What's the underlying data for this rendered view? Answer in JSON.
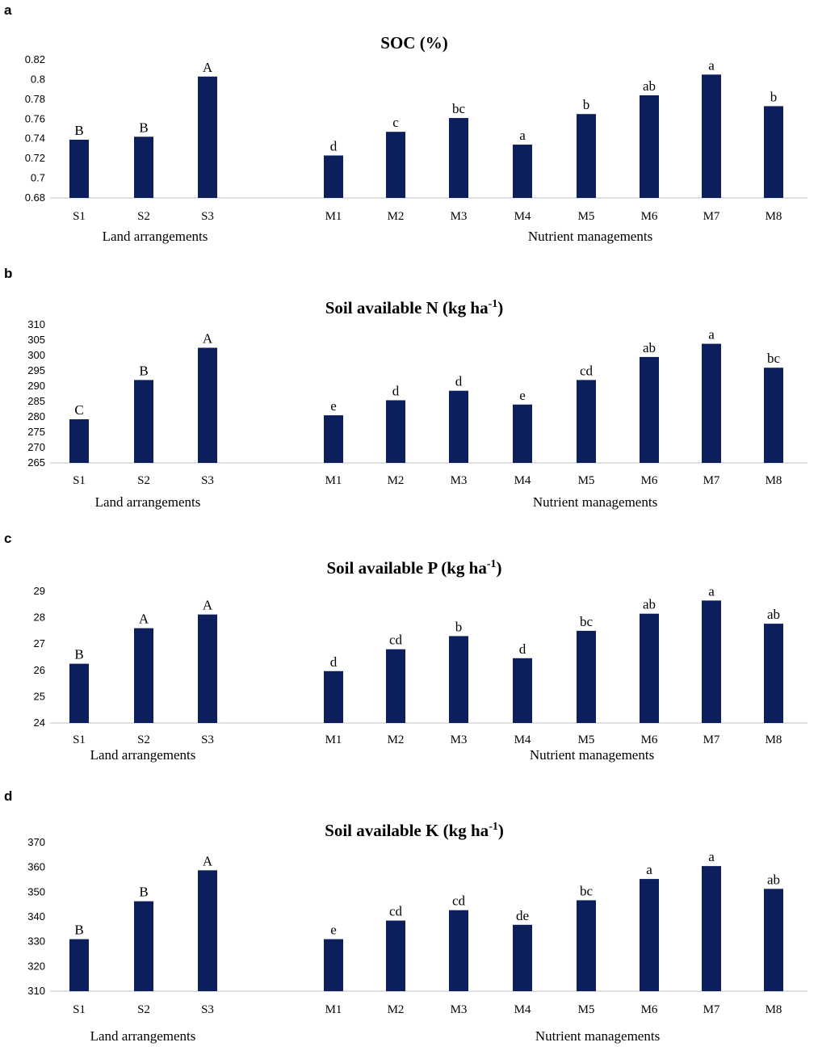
{
  "colors": {
    "bar": "#0c1f5c",
    "axis": "#bfbfbf"
  },
  "chart_data": [
    {
      "panel": "a",
      "type": "bar",
      "title": "SOC (%)",
      "title_unit": "",
      "ylim": [
        0.68,
        0.82
      ],
      "yticks": [
        "0.68",
        "0.7",
        "0.72",
        "0.74",
        "0.76",
        "0.78",
        "0.8",
        "0.82"
      ],
      "yticks_values": [
        0.68,
        0.7,
        0.72,
        0.74,
        0.76,
        0.78,
        0.8,
        0.82
      ],
      "groups": [
        {
          "name": "Land arrangements",
          "categories": [
            "S1",
            "S2",
            "S3"
          ],
          "values": [
            0.739,
            0.742,
            0.803
          ],
          "labels": [
            "B",
            "B",
            "A"
          ]
        },
        {
          "name": "Nutrient managements",
          "categories": [
            "M1",
            "M2",
            "M3",
            "M4",
            "M5",
            "M6",
            "M7",
            "M8"
          ],
          "values": [
            0.723,
            0.747,
            0.761,
            0.734,
            0.765,
            0.784,
            0.805,
            0.773
          ],
          "labels": [
            "d",
            "c",
            "bc",
            "a",
            "b",
            "ab",
            "a",
            "b"
          ]
        }
      ]
    },
    {
      "panel": "b",
      "type": "bar",
      "title": "Soil available N (kg ha",
      "title_sup": "-1",
      "title_end": ")",
      "ylim": [
        265,
        310
      ],
      "yticks": [
        "265",
        "270",
        "275",
        "280",
        "285",
        "290",
        "295",
        "300",
        "305",
        "310"
      ],
      "yticks_values": [
        265,
        270,
        275,
        280,
        285,
        290,
        295,
        300,
        305,
        310
      ],
      "groups": [
        {
          "name": "Land arrangements",
          "categories": [
            "S1",
            "S2",
            "S3"
          ],
          "values": [
            279.2,
            292.0,
            302.5
          ],
          "labels": [
            "C",
            "B",
            "A"
          ]
        },
        {
          "name": "Nutrient managements",
          "categories": [
            "M1",
            "M2",
            "M3",
            "M4",
            "M5",
            "M6",
            "M7",
            "M8"
          ],
          "values": [
            280.5,
            285.4,
            288.5,
            284.0,
            292.0,
            299.5,
            303.8,
            296.0
          ],
          "labels": [
            "e",
            "d",
            "d",
            "e",
            "cd",
            "ab",
            "a",
            "bc"
          ]
        }
      ]
    },
    {
      "panel": "c",
      "type": "bar",
      "title": "Soil available P (kg ha",
      "title_sup": "-1",
      "title_end": ")",
      "ylim": [
        24,
        29
      ],
      "yticks": [
        "24",
        "25",
        "26",
        "27",
        "28",
        "29"
      ],
      "yticks_values": [
        24,
        25,
        26,
        27,
        28,
        29
      ],
      "groups": [
        {
          "name": "Land arrangements",
          "categories": [
            "S1",
            "S2",
            "S3"
          ],
          "values": [
            26.25,
            27.6,
            28.12
          ],
          "labels": [
            "B",
            "A",
            "A"
          ]
        },
        {
          "name": "Nutrient managements",
          "categories": [
            "M1",
            "M2",
            "M3",
            "M4",
            "M5",
            "M6",
            "M7",
            "M8"
          ],
          "values": [
            25.97,
            26.8,
            27.3,
            26.46,
            27.5,
            28.15,
            28.65,
            27.77
          ],
          "labels": [
            "d",
            "cd",
            "b",
            "d",
            "bc",
            "ab",
            "a",
            "ab"
          ]
        }
      ]
    },
    {
      "panel": "d",
      "type": "bar",
      "title": "Soil available K (kg ha",
      "title_sup": "-1",
      "title_end": ")",
      "ylim": [
        310,
        370
      ],
      "yticks": [
        "310",
        "320",
        "330",
        "340",
        "350",
        "360",
        "370"
      ],
      "yticks_values": [
        310,
        320,
        330,
        340,
        350,
        360,
        370
      ],
      "groups": [
        {
          "name": "Land arrangements",
          "categories": [
            "S1",
            "S2",
            "S3"
          ],
          "values": [
            331.0,
            346.3,
            358.8
          ],
          "labels": [
            "B",
            "B",
            "A"
          ]
        },
        {
          "name": "Nutrient managements",
          "categories": [
            "M1",
            "M2",
            "M3",
            "M4",
            "M5",
            "M6",
            "M7",
            "M8"
          ],
          "values": [
            331.0,
            338.5,
            342.7,
            336.8,
            346.7,
            355.3,
            360.5,
            351.3
          ],
          "labels": [
            "e",
            "cd",
            "cd",
            "de",
            "bc",
            "a",
            "a",
            "ab"
          ]
        }
      ]
    }
  ]
}
